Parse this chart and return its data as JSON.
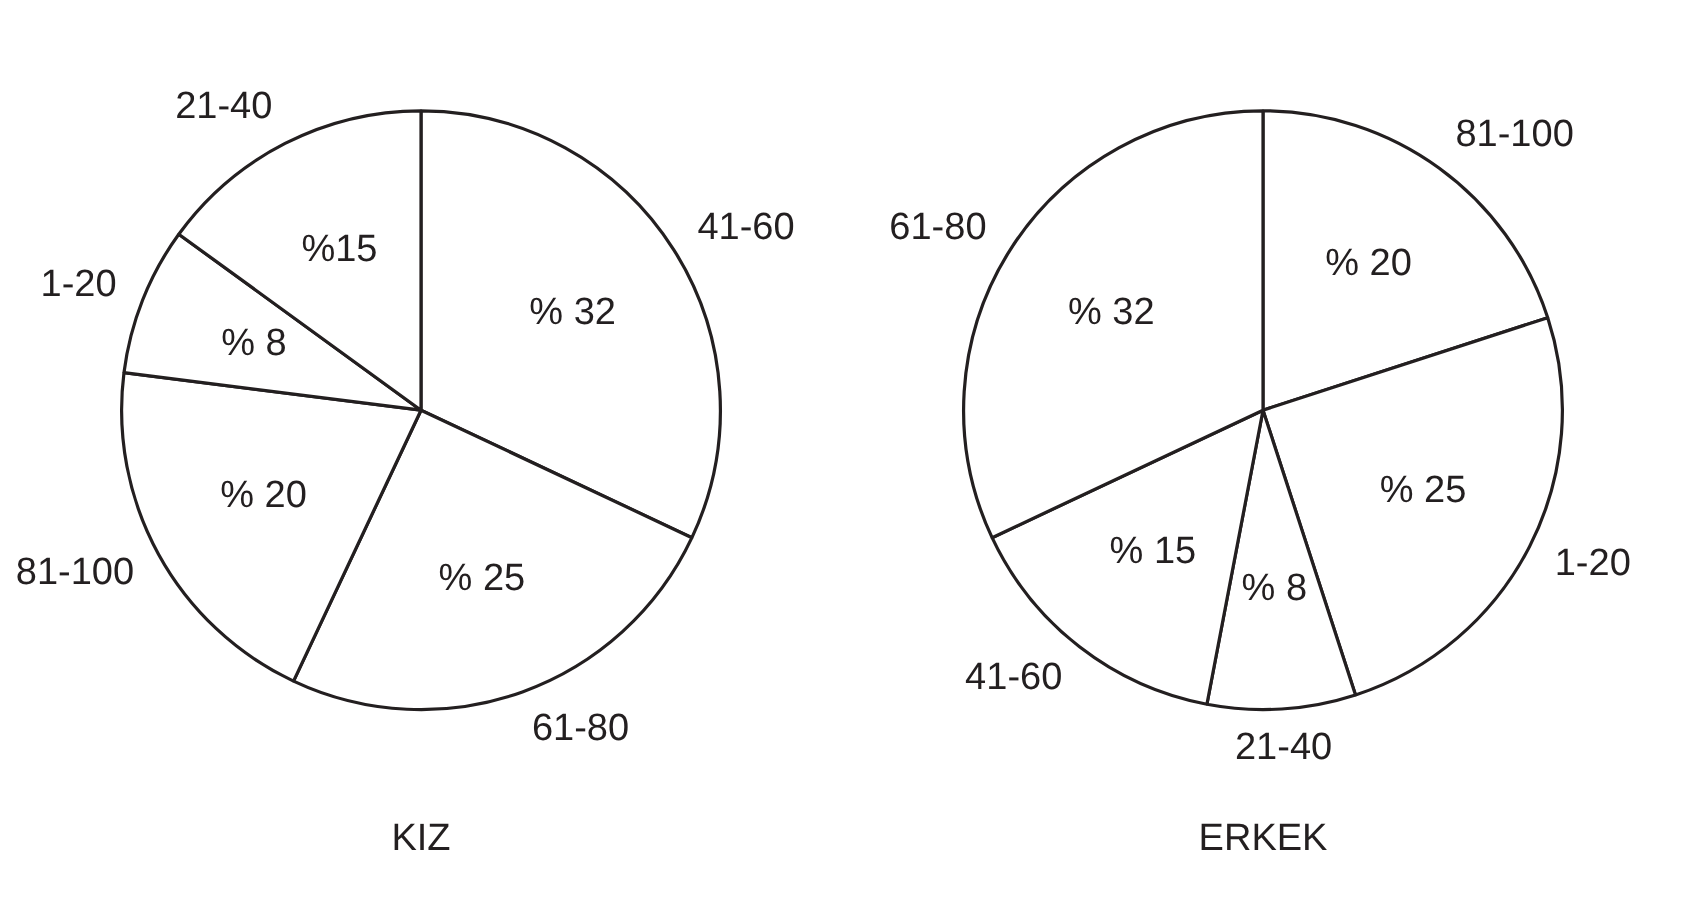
{
  "chart_data": [
    {
      "type": "pie",
      "title": "KIZ",
      "categories": [
        "41-60",
        "61-80",
        "81-100",
        "1-20",
        "21-40"
      ],
      "values": [
        32,
        25,
        20,
        8,
        15
      ],
      "colors": [
        "#ffffff",
        "#ffffff",
        "#ffffff",
        "#ffffff",
        "#ffffff"
      ],
      "value_labels": [
        "% 32",
        "% 25",
        "% 20",
        "% 8",
        "%15"
      ]
    },
    {
      "type": "pie",
      "title": "ERKEK",
      "categories": [
        "81-100",
        "1-20",
        "21-40",
        "41-60",
        "61-80"
      ],
      "values": [
        20,
        25,
        8,
        15,
        32
      ],
      "colors": [
        "#ffffff",
        "#ffffff",
        "#ffffff",
        "#ffffff",
        "#ffffff"
      ],
      "value_labels": [
        "% 20",
        "% 25",
        "% 8",
        "% 15",
        "% 32"
      ]
    }
  ]
}
